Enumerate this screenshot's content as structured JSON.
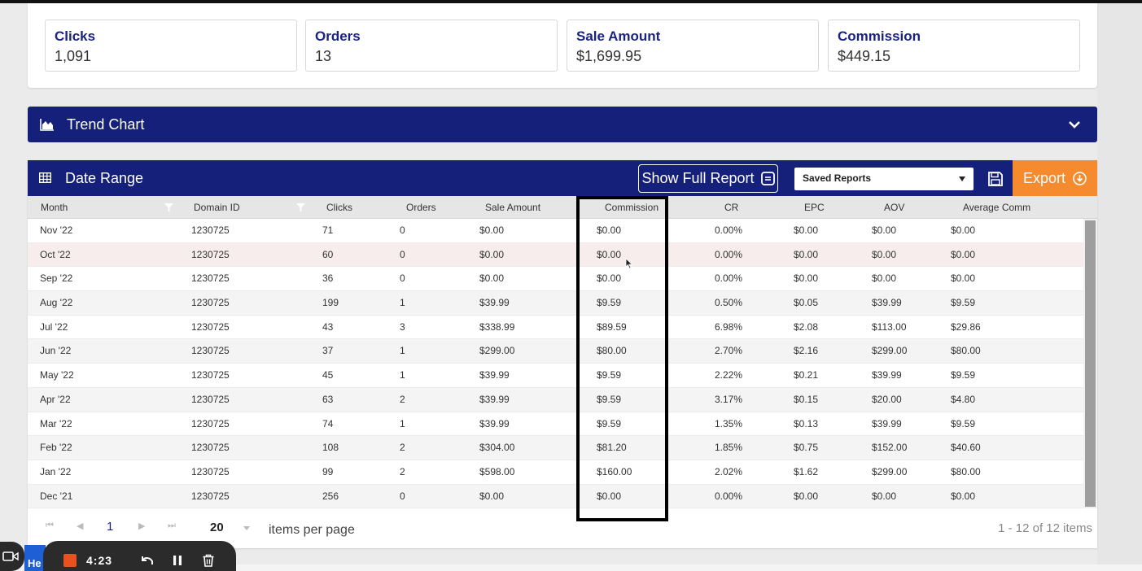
{
  "summary": [
    {
      "label": "Clicks",
      "value": "1,091"
    },
    {
      "label": "Orders",
      "value": "13"
    },
    {
      "label": "Sale Amount",
      "value": "$1,699.95"
    },
    {
      "label": "Commission",
      "value": "$449.15"
    }
  ],
  "trend_chart": {
    "title": "Trend Chart",
    "icon": "area-chart-icon"
  },
  "grid": {
    "title": "Date Range",
    "icon": "table-grid-icon",
    "show_full_report": "Show Full Report",
    "saved_reports": "Saved Reports",
    "export": "Export",
    "columns": [
      "Month",
      "Domain ID",
      "Clicks",
      "Orders",
      "Sale Amount",
      "Commission",
      "CR",
      "EPC",
      "AOV",
      "Average Comm"
    ],
    "rows": [
      [
        "Nov '22",
        "1230725",
        "71",
        "0",
        "$0.00",
        "$0.00",
        "0.00%",
        "$0.00",
        "$0.00",
        "$0.00"
      ],
      [
        "Oct '22",
        "1230725",
        "60",
        "0",
        "$0.00",
        "$0.00",
        "0.00%",
        "$0.00",
        "$0.00",
        "$0.00"
      ],
      [
        "Sep '22",
        "1230725",
        "36",
        "0",
        "$0.00",
        "$0.00",
        "0.00%",
        "$0.00",
        "$0.00",
        "$0.00"
      ],
      [
        "Aug '22",
        "1230725",
        "199",
        "1",
        "$39.99",
        "$9.59",
        "0.50%",
        "$0.05",
        "$39.99",
        "$9.59"
      ],
      [
        "Jul '22",
        "1230725",
        "43",
        "3",
        "$338.99",
        "$89.59",
        "6.98%",
        "$2.08",
        "$113.00",
        "$29.86"
      ],
      [
        "Jun '22",
        "1230725",
        "37",
        "1",
        "$299.00",
        "$80.00",
        "2.70%",
        "$2.16",
        "$299.00",
        "$80.00"
      ],
      [
        "May '22",
        "1230725",
        "45",
        "1",
        "$39.99",
        "$9.59",
        "2.22%",
        "$0.21",
        "$39.99",
        "$9.59"
      ],
      [
        "Apr '22",
        "1230725",
        "63",
        "2",
        "$39.99",
        "$9.59",
        "3.17%",
        "$0.15",
        "$20.00",
        "$4.80"
      ],
      [
        "Mar '22",
        "1230725",
        "74",
        "1",
        "$39.99",
        "$9.59",
        "1.35%",
        "$0.13",
        "$39.99",
        "$9.59"
      ],
      [
        "Feb '22",
        "1230725",
        "108",
        "2",
        "$304.00",
        "$81.20",
        "1.85%",
        "$0.75",
        "$152.00",
        "$40.60"
      ],
      [
        "Jan '22",
        "1230725",
        "99",
        "2",
        "$598.00",
        "$160.00",
        "2.02%",
        "$1.62",
        "$299.00",
        "$80.00"
      ],
      [
        "Dec '21",
        "1230725",
        "256",
        "0",
        "$0.00",
        "$0.00",
        "0.00%",
        "$0.00",
        "$0.00",
        "$0.00"
      ]
    ],
    "hover_row": 1
  },
  "pager": {
    "current_page": "1",
    "page_size": "20",
    "items_per_page": "items per page",
    "info": "1 - 12 of 12 items"
  },
  "recorder": {
    "time": "4:23",
    "help_label": "He"
  },
  "colors": {
    "header_navy": "#15207a",
    "export_orange": "#f58a2e",
    "record_red": "#e8521e"
  }
}
